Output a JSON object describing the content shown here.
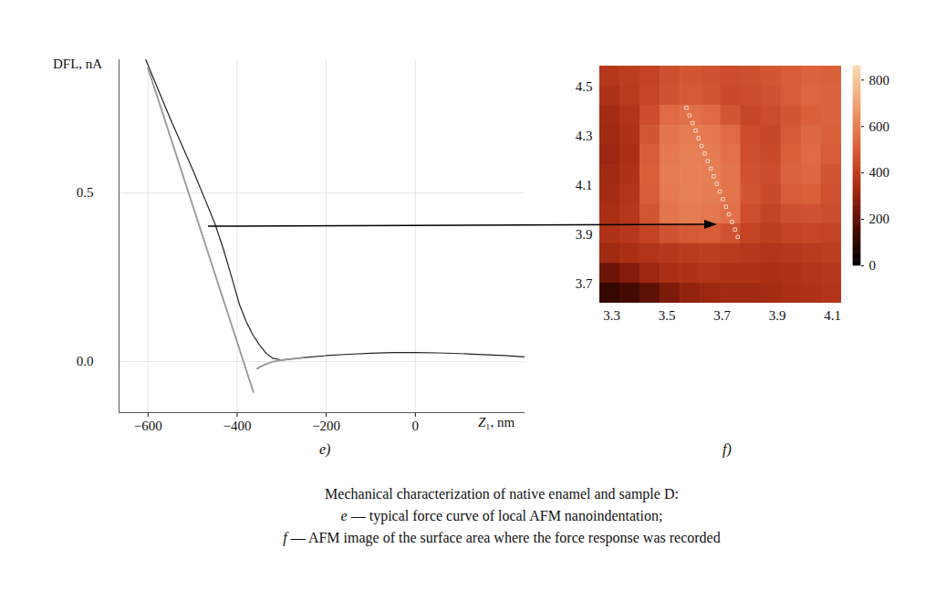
{
  "chart_data": [
    {
      "type": "line",
      "panel_label": "e)",
      "x_label": "Z₁, nm",
      "y_label": "DFL, nA",
      "xlim": [
        -665,
        246
      ],
      "xticks": [
        {
          "value": -600,
          "label": "−600"
        },
        {
          "value": -400,
          "label": "−400"
        },
        {
          "value": -200,
          "label": "−200"
        },
        0
      ],
      "ylim": [
        -0.151,
        0.895
      ],
      "yticks": [
        {
          "value": 0,
          "label": "0.0"
        },
        0.5
      ],
      "grid": true,
      "series": [
        {
          "color": "#222222",
          "line_style": "solid",
          "x": [
            -605,
            -550,
            -500,
            -478,
            -450,
            -430,
            -410,
            -395,
            -380,
            -365,
            -350,
            -335,
            -320,
            -300,
            -250,
            -200,
            -150,
            -100,
            -50,
            0,
            50,
            100,
            150,
            200,
            246
          ],
          "values": [
            0.895,
            0.72,
            0.57,
            0.5,
            0.41,
            0.33,
            0.24,
            0.17,
            0.12,
            0.08,
            0.05,
            0.025,
            0.01,
            0.005,
            0.012,
            0.018,
            0.022,
            0.025,
            0.027,
            0.027,
            0.026,
            0.024,
            0.021,
            0.018,
            0.014
          ]
        },
        {
          "color": "#9a9a9a",
          "line_style": "dotted",
          "x": [
            -600,
            -550,
            -500,
            -450,
            -400,
            -363,
            -359,
            -355,
            -340,
            -320,
            -300,
            -250
          ],
          "values": [
            0.87,
            0.667,
            0.464,
            0.261,
            0.058,
            -0.092,
            null,
            -0.02,
            -0.01,
            0,
            0.005,
            0.012
          ]
        }
      ]
    },
    {
      "type": "heatmap",
      "panel_label": "f)",
      "xlim": [
        3.257,
        4.133
      ],
      "xticks": [
        3.3,
        3.5,
        3.7,
        3.9,
        4.1
      ],
      "ylim": [
        3.619,
        4.585
      ],
      "yticks": [
        3.7,
        3.9,
        4.1,
        4.3,
        4.5
      ],
      "x": [
        3.294,
        3.367,
        3.44,
        3.513,
        3.586,
        3.659,
        3.732,
        3.805,
        3.878,
        3.951,
        4.024,
        4.097
      ],
      "y": [
        4.545,
        4.464,
        4.384,
        4.303,
        4.223,
        4.142,
        4.062,
        3.981,
        3.901,
        3.82,
        3.74,
        3.659
      ],
      "values": [
        [
          380,
          400,
          420,
          460,
          480,
          470,
          450,
          460,
          480,
          500,
          520,
          510
        ],
        [
          360,
          390,
          430,
          470,
          490,
          480,
          440,
          450,
          470,
          500,
          530,
          520
        ],
        [
          340,
          370,
          450,
          540,
          560,
          540,
          480,
          430,
          450,
          480,
          510,
          520
        ],
        [
          330,
          360,
          480,
          570,
          590,
          580,
          540,
          450,
          430,
          490,
          530,
          510
        ],
        [
          320,
          350,
          500,
          580,
          600,
          590,
          560,
          460,
          440,
          510,
          540,
          500
        ],
        [
          330,
          360,
          510,
          590,
          600,
          600,
          570,
          470,
          450,
          520,
          530,
          480
        ],
        [
          340,
          370,
          500,
          580,
          600,
          590,
          570,
          480,
          440,
          500,
          510,
          470
        ],
        [
          350,
          380,
          480,
          570,
          590,
          580,
          560,
          460,
          420,
          460,
          470,
          450
        ],
        [
          360,
          380,
          420,
          470,
          490,
          500,
          470,
          420,
          400,
          420,
          430,
          420
        ],
        [
          330,
          350,
          370,
          380,
          390,
          400,
          390,
          380,
          370,
          380,
          390,
          400
        ],
        [
          230,
          270,
          320,
          350,
          360,
          370,
          360,
          360,
          350,
          360,
          370,
          380
        ],
        [
          120,
          150,
          200,
          260,
          300,
          320,
          330,
          330,
          340,
          350,
          360,
          370
        ]
      ],
      "colorbar": {
        "range": [
          0,
          860
        ],
        "ticks": [
          0,
          200,
          400,
          600,
          800
        ]
      },
      "points": {
        "marker": "square",
        "x": [
          3.571,
          3.582,
          3.593,
          3.604,
          3.615,
          3.626,
          3.637,
          3.648,
          3.659,
          3.67,
          3.681,
          3.692,
          3.703,
          3.714,
          3.725,
          3.736,
          3.747,
          3.757
        ],
        "y": [
          4.415,
          4.384,
          4.353,
          4.322,
          4.291,
          4.26,
          4.229,
          4.198,
          4.167,
          4.136,
          4.105,
          4.074,
          4.043,
          4.012,
          3.981,
          3.95,
          3.919,
          3.889
        ]
      }
    }
  ],
  "caption": {
    "title": "Mechanical characterization of native enamel and sample D:",
    "lines": [
      {
        "letter": "e",
        "text": " — typical force curve of local AFM nanoindentation;"
      },
      {
        "letter": "f",
        "text": " — AFM image of the surface area where the force response was recorded"
      }
    ]
  }
}
